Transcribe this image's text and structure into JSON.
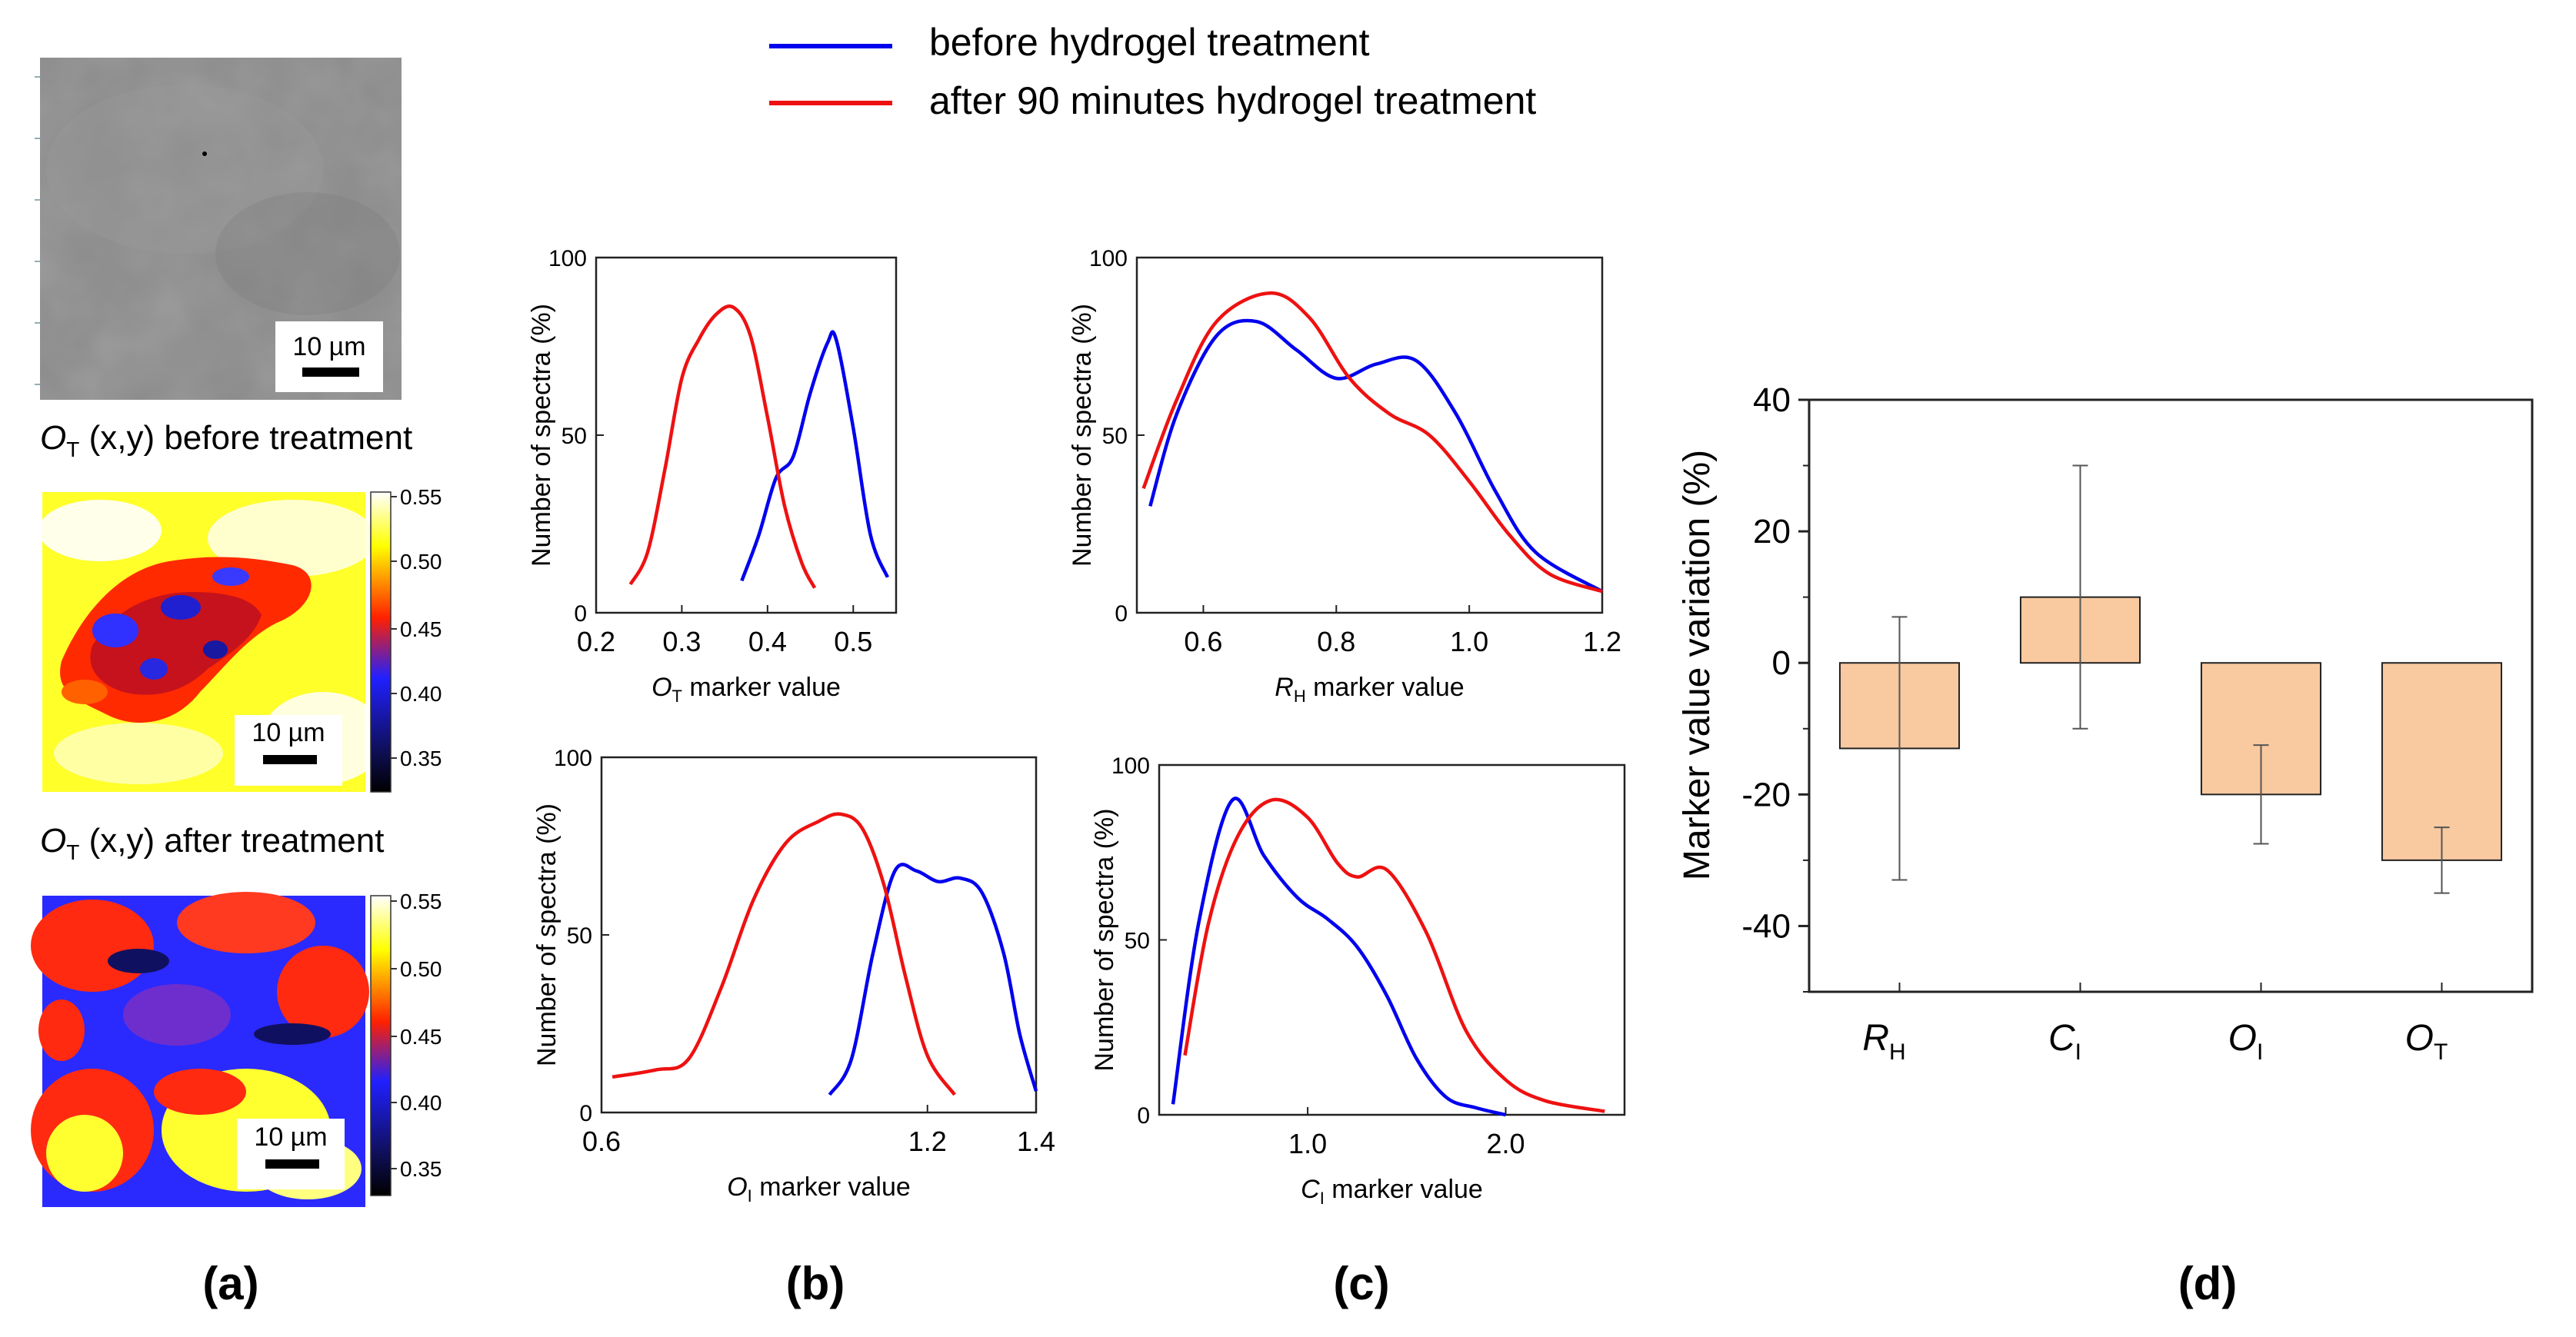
{
  "legend": {
    "before": "before hydrogel treatment",
    "after": "after 90 minutes hydrogel treatment"
  },
  "colors": {
    "before": "#0000ee",
    "after": "#ee1111",
    "bar": "#f9c9a0",
    "bar_stroke": "#222222"
  },
  "panel_labels": {
    "a": "(a)",
    "b": "(b)",
    "c": "(c)",
    "d": "(d)"
  },
  "panel_a": {
    "scale_bar": "10 µm",
    "map1_title_main": "O",
    "map1_title_sub": "T",
    "map1_title_rest": " (x,y) before treatment",
    "map2_title_main": "O",
    "map2_title_sub": "T",
    "map2_title_rest": " (x,y) after treatment",
    "colorbar_ticks": [
      "0.55",
      "0.50",
      "0.45",
      "0.40",
      "0.35"
    ]
  },
  "chart_data": [
    {
      "id": "OT",
      "type": "line",
      "ylabel": "Number of spectra (%)",
      "xlabel_main": "O",
      "xlabel_sub": "T",
      "xlabel_rest": " marker value",
      "xlim": [
        0.2,
        0.55
      ],
      "ylim": [
        0,
        100
      ],
      "xticks": [
        "0.2",
        "0.3",
        "0.4",
        "0.5"
      ],
      "yticks": [
        "0",
        "50",
        "100"
      ],
      "series": [
        {
          "name": "before hydrogel treatment",
          "x": [
            0.37,
            0.39,
            0.41,
            0.43,
            0.45,
            0.47,
            0.48,
            0.5,
            0.52,
            0.54
          ],
          "y": [
            9,
            22,
            38,
            44,
            62,
            76,
            77,
            52,
            22,
            10
          ]
        },
        {
          "name": "after 90 minutes hydrogel treatment",
          "x": [
            0.24,
            0.26,
            0.28,
            0.3,
            0.32,
            0.34,
            0.36,
            0.38,
            0.4,
            0.42,
            0.44,
            0.455
          ],
          "y": [
            8,
            17,
            40,
            66,
            77,
            84,
            86,
            78,
            55,
            30,
            14,
            7
          ]
        }
      ]
    },
    {
      "id": "RH",
      "type": "line",
      "ylabel": "Number of spectra (%)",
      "xlabel_main": "R",
      "xlabel_sub": "H",
      "xlabel_rest": " marker value",
      "xlim": [
        0.5,
        1.2
      ],
      "ylim": [
        0,
        100
      ],
      "xticks": [
        "0.6",
        "0.8",
        "1.0",
        "1.2"
      ],
      "yticks": [
        "0",
        "50",
        "100"
      ],
      "series": [
        {
          "name": "before hydrogel treatment",
          "x": [
            0.52,
            0.56,
            0.62,
            0.68,
            0.74,
            0.8,
            0.86,
            0.92,
            0.98,
            1.04,
            1.1,
            1.2
          ],
          "y": [
            30,
            56,
            78,
            82,
            74,
            66,
            70,
            71,
            56,
            34,
            17,
            6
          ]
        },
        {
          "name": "after 90 minutes hydrogel treatment",
          "x": [
            0.51,
            0.56,
            0.62,
            0.7,
            0.76,
            0.82,
            0.88,
            0.94,
            1.0,
            1.06,
            1.12,
            1.2
          ],
          "y": [
            35,
            60,
            82,
            90,
            83,
            66,
            56,
            50,
            37,
            22,
            11,
            6
          ]
        }
      ]
    },
    {
      "id": "OI",
      "type": "line",
      "ylabel": "Number of spectra (%)",
      "xlabel_main": "O",
      "xlabel_sub": "I",
      "xlabel_rest": " marker value",
      "xlim": [
        0.6,
        1.4
      ],
      "ylim": [
        0,
        100
      ],
      "xticks": [
        "0.6",
        "1.2",
        "1.4"
      ],
      "yticks": [
        "0",
        "50",
        "100"
      ],
      "series": [
        {
          "name": "before hydrogel treatment",
          "x": [
            1.02,
            1.06,
            1.1,
            1.14,
            1.18,
            1.22,
            1.26,
            1.3,
            1.34,
            1.37,
            1.4
          ],
          "y": [
            5,
            15,
            45,
            68,
            68,
            65,
            66,
            62,
            45,
            22,
            6
          ]
        },
        {
          "name": "after 90 minutes hydrogel treatment",
          "x": [
            0.62,
            0.7,
            0.76,
            0.82,
            0.88,
            0.94,
            1.0,
            1.04,
            1.08,
            1.12,
            1.16,
            1.2,
            1.25
          ],
          "y": [
            10,
            12,
            15,
            35,
            60,
            76,
            82,
            84,
            80,
            64,
            38,
            16,
            5
          ]
        }
      ]
    },
    {
      "id": "CI",
      "type": "line",
      "ylabel": "Number of spectra (%)",
      "xlabel_main": "C",
      "xlabel_sub": "I",
      "xlabel_rest": " marker value",
      "xlim": [
        0.25,
        2.6
      ],
      "ylim": [
        0,
        100
      ],
      "xticks": [
        "1.0",
        "2.0"
      ],
      "yticks": [
        "0",
        "50",
        "100"
      ],
      "series": [
        {
          "name": "before hydrogel treatment",
          "x": [
            0.32,
            0.45,
            0.62,
            0.78,
            0.95,
            1.1,
            1.25,
            1.4,
            1.55,
            1.7,
            1.85,
            2.0
          ],
          "y": [
            3,
            55,
            90,
            74,
            62,
            56,
            48,
            34,
            16,
            5,
            2,
            0
          ]
        },
        {
          "name": "after 90 minutes hydrogel treatment",
          "x": [
            0.38,
            0.5,
            0.65,
            0.82,
            1.0,
            1.15,
            1.25,
            1.4,
            1.6,
            1.8,
            2.0,
            2.2,
            2.5
          ],
          "y": [
            17,
            55,
            80,
            90,
            85,
            72,
            68,
            70,
            52,
            24,
            10,
            4,
            1
          ]
        }
      ]
    },
    {
      "id": "variation",
      "type": "bar",
      "ylabel": "Marker value variation (%)",
      "ylim": [
        -50,
        40
      ],
      "yticks": [
        "40",
        "20",
        "0",
        "-20",
        "-40"
      ],
      "categories": [
        {
          "main": "R",
          "sub": "H"
        },
        {
          "main": "C",
          "sub": "I"
        },
        {
          "main": "O",
          "sub": "I"
        },
        {
          "main": "O",
          "sub": "T"
        }
      ],
      "values": [
        -13,
        10,
        -20,
        -30
      ],
      "error_low": [
        -33,
        -10,
        -27.5,
        -35
      ],
      "error_high": [
        7,
        30,
        -12.5,
        -25
      ]
    }
  ]
}
